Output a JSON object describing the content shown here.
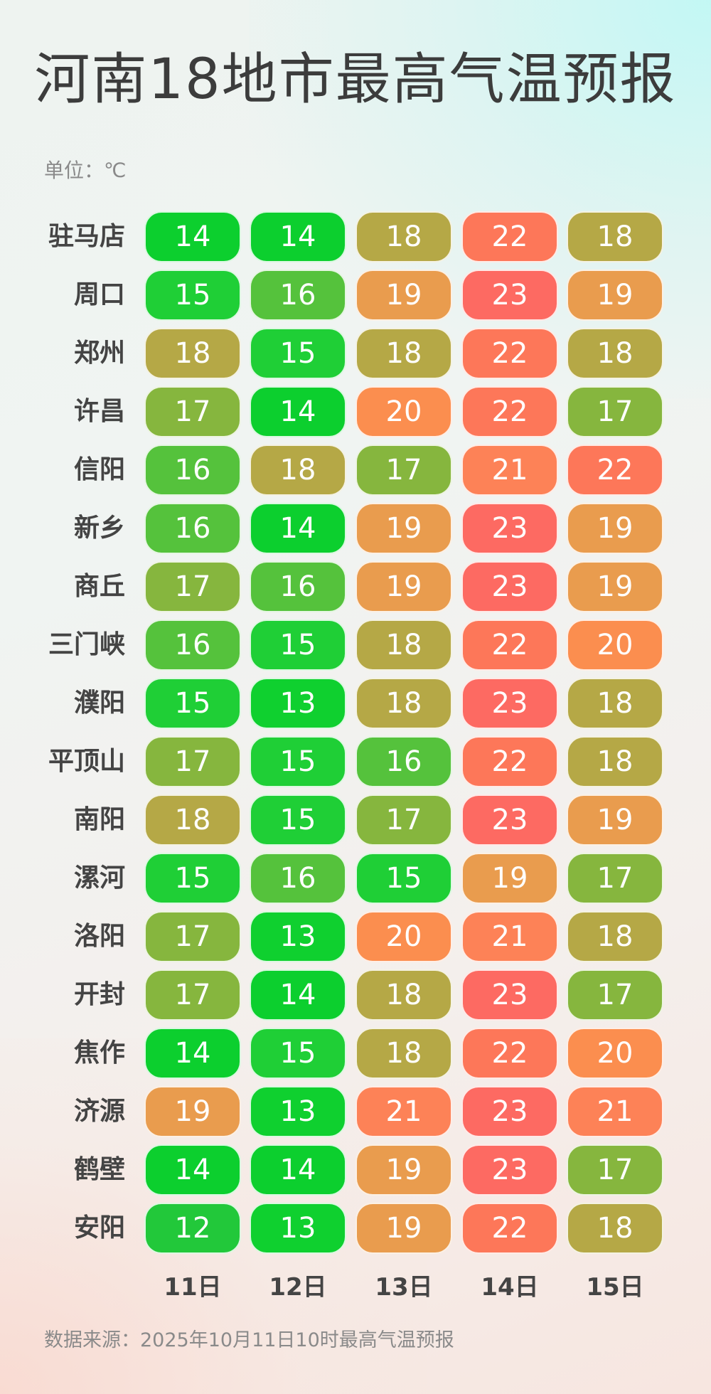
{
  "title": "河南18地市最高气温预报",
  "unit_label": "单位：℃",
  "source": "数据来源：2025年10月11日10时最高气温预报",
  "chart_data": {
    "type": "heatmap",
    "title": "河南18地市最高气温预报",
    "unit": "℃",
    "x": [
      "11日",
      "12日",
      "13日",
      "14日",
      "15日"
    ],
    "y": [
      "驻马店",
      "周口",
      "郑州",
      "许昌",
      "信阳",
      "新乡",
      "商丘",
      "三门峡",
      "濮阳",
      "平顶山",
      "南阳",
      "漯河",
      "洛阳",
      "开封",
      "焦作",
      "济源",
      "鹤壁",
      "安阳"
    ],
    "values": [
      [
        14,
        14,
        18,
        22,
        18
      ],
      [
        15,
        16,
        19,
        23,
        19
      ],
      [
        18,
        15,
        18,
        22,
        18
      ],
      [
        17,
        14,
        20,
        22,
        17
      ],
      [
        16,
        18,
        17,
        21,
        22
      ],
      [
        16,
        14,
        19,
        23,
        19
      ],
      [
        17,
        16,
        19,
        23,
        19
      ],
      [
        16,
        15,
        18,
        22,
        20
      ],
      [
        15,
        13,
        18,
        23,
        18
      ],
      [
        17,
        15,
        16,
        22,
        18
      ],
      [
        18,
        15,
        17,
        23,
        19
      ],
      [
        15,
        16,
        15,
        19,
        17
      ],
      [
        17,
        13,
        20,
        21,
        18
      ],
      [
        17,
        14,
        18,
        23,
        17
      ],
      [
        14,
        15,
        18,
        22,
        20
      ],
      [
        19,
        13,
        21,
        23,
        21
      ],
      [
        14,
        14,
        19,
        23,
        17
      ],
      [
        12,
        13,
        19,
        22,
        18
      ]
    ],
    "color_scale": {
      "12": "#22c83a",
      "13": "#0fd02f",
      "14": "#0ccf2e",
      "15": "#1fcf36",
      "16": "#55c23c",
      "17": "#86b63e",
      "18": "#b5a846",
      "19": "#e99c4e",
      "20": "#fb8e4f",
      "21": "#fd8257",
      "22": "#fd7759",
      "23": "#fd6a62"
    }
  }
}
